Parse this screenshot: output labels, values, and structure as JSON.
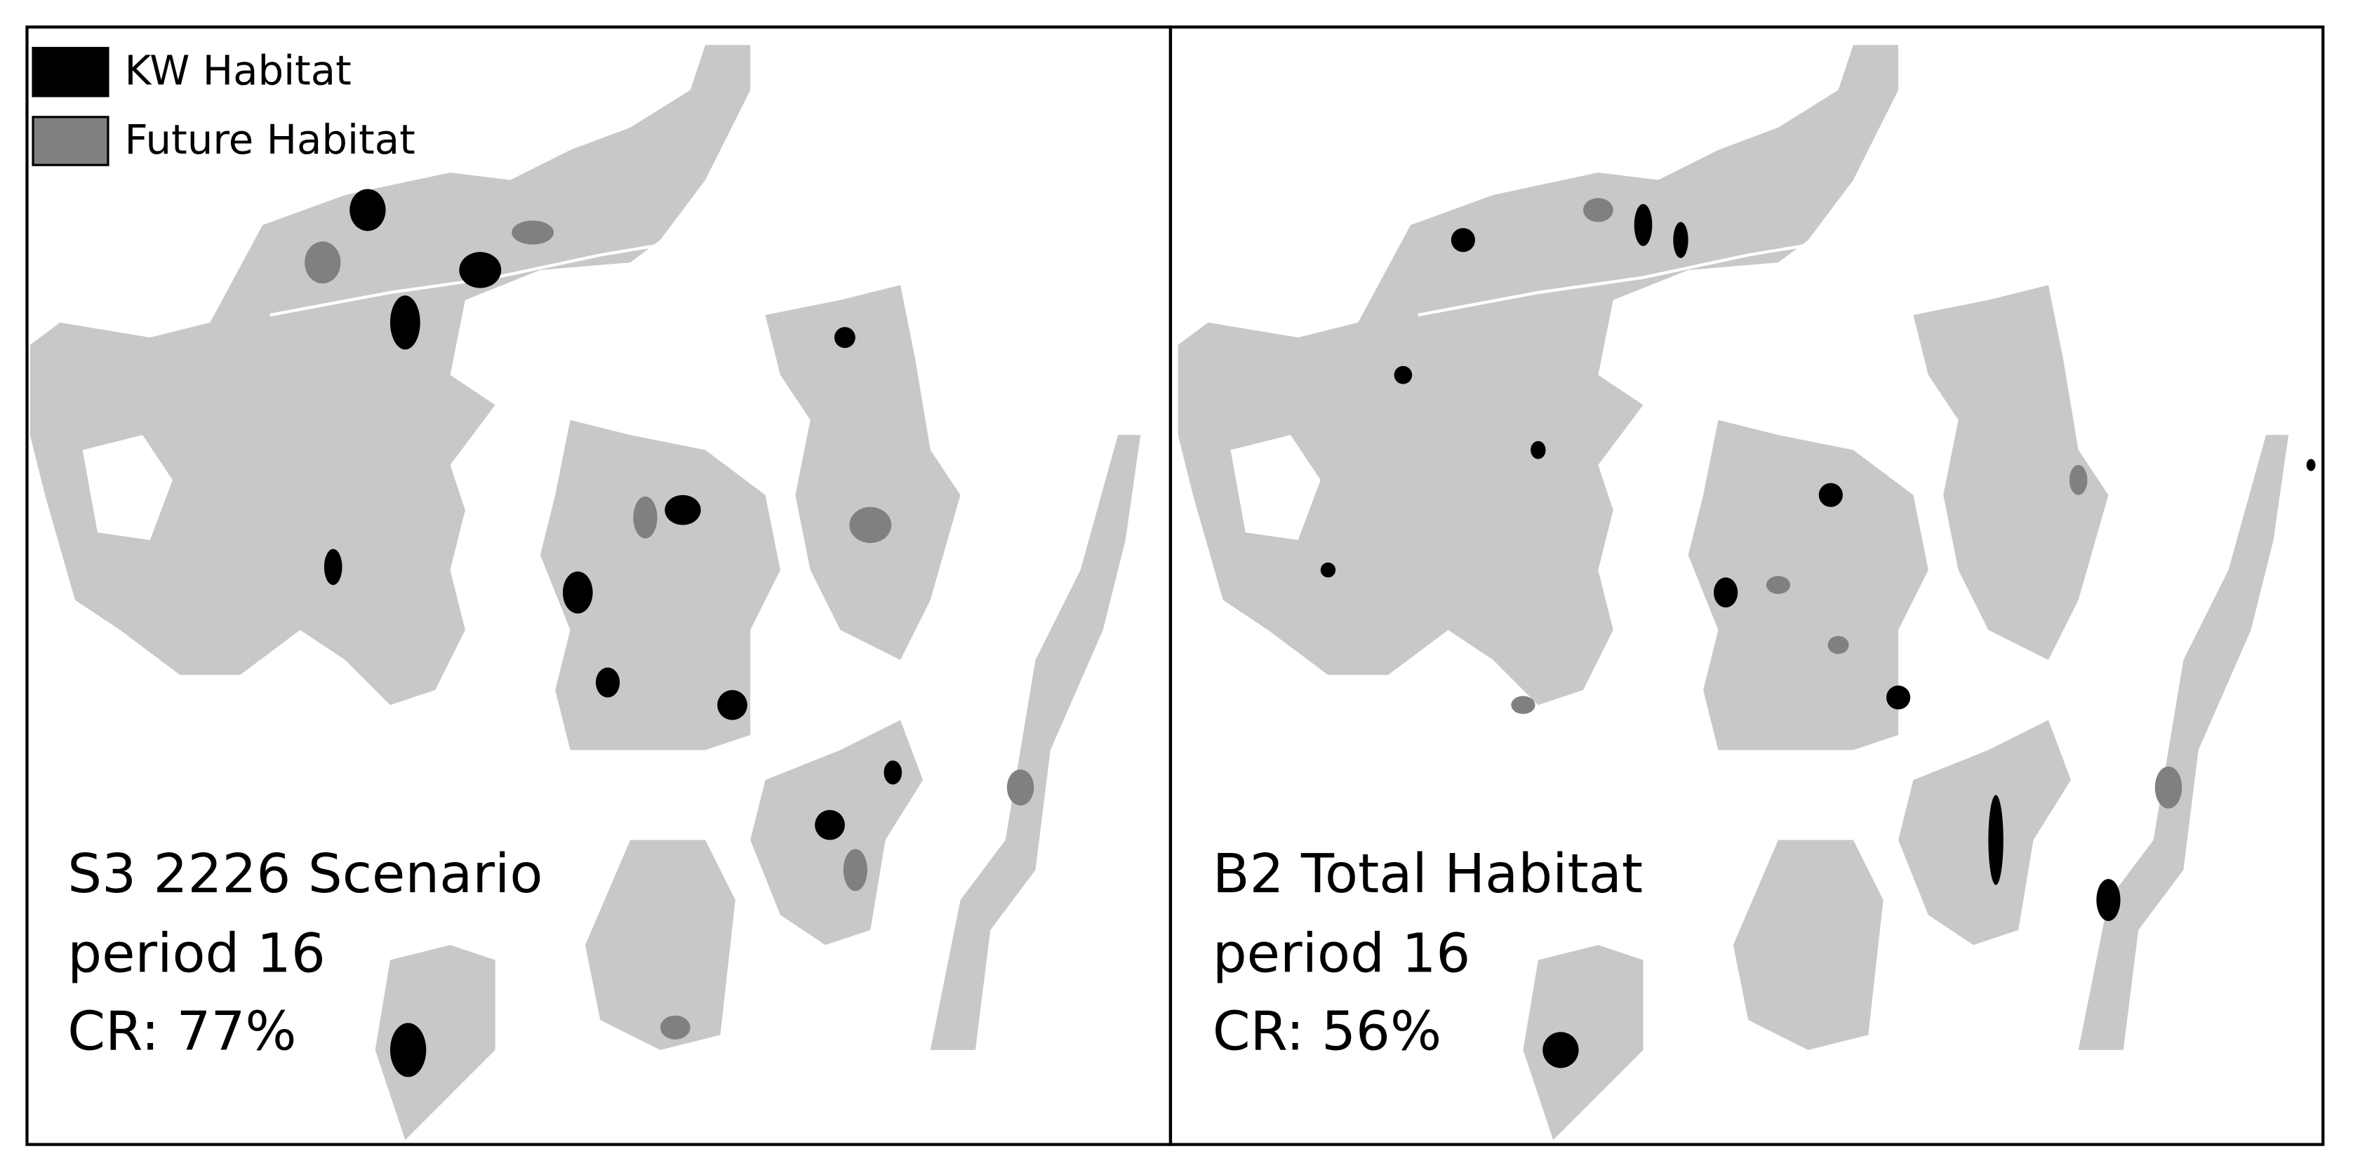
{
  "legend": {
    "items": [
      {
        "label": "KW Habitat",
        "color": "#000000"
      },
      {
        "label": "Future Habitat",
        "color": "#808080"
      }
    ]
  },
  "panels": [
    {
      "title": "S3 2226 Scenario",
      "period": "period 16",
      "cr": "CR: 77%"
    },
    {
      "title": "B2 Total Habitat",
      "period": "period 16",
      "cr": "CR: 56%"
    }
  ]
}
